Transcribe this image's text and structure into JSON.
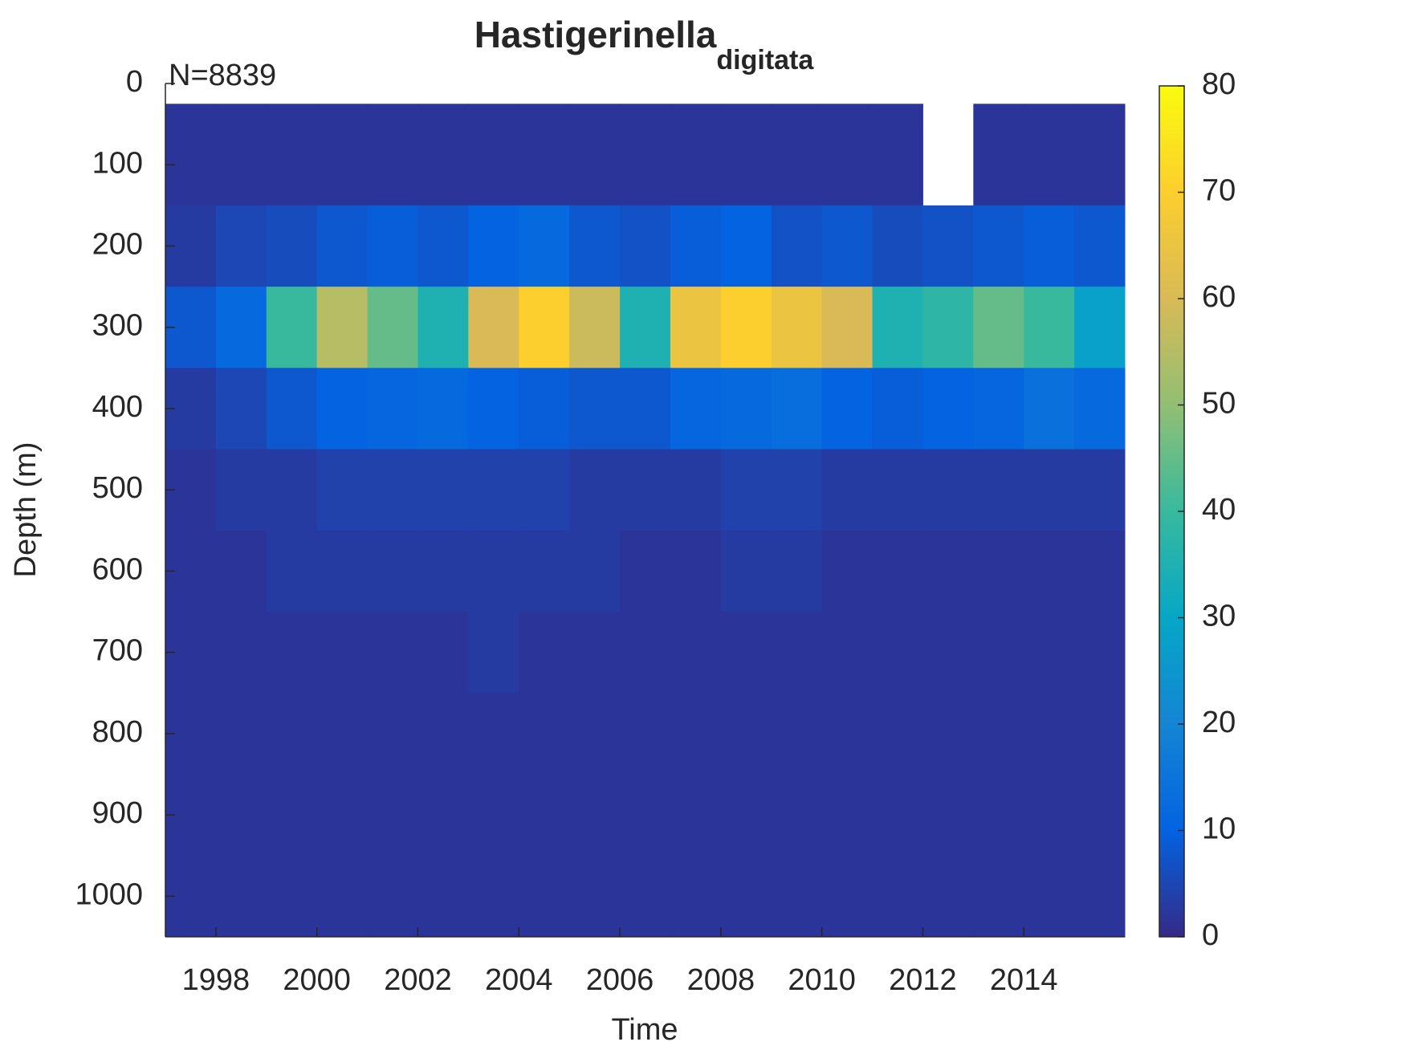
{
  "chart_data": {
    "type": "heatmap",
    "title": "Hastigerinella",
    "title_subscript": "digitata",
    "annotation": "N=8839",
    "x_label": "Time",
    "y_label": "Depth (m)",
    "x_bins": [
      1997,
      1998,
      1999,
      2000,
      2001,
      2002,
      2003,
      2004,
      2005,
      2006,
      2007,
      2008,
      2009,
      2010,
      2011,
      2012,
      2013,
      2014,
      2015,
      2016
    ],
    "y_bins": [
      25,
      150,
      250,
      350,
      450,
      550,
      650,
      750,
      850,
      950,
      1050
    ],
    "z": [
      [
        2,
        2,
        2,
        2,
        2,
        2,
        2,
        2,
        2,
        2,
        2,
        2,
        2,
        2,
        2,
        null,
        2,
        2,
        2
      ],
      [
        3,
        5,
        6,
        8,
        9,
        8,
        10,
        12,
        8,
        7,
        9,
        10,
        7,
        8,
        6,
        7,
        8,
        9,
        8
      ],
      [
        8,
        12,
        40,
        55,
        45,
        35,
        60,
        70,
        58,
        35,
        65,
        70,
        65,
        60,
        35,
        38,
        45,
        40,
        28
      ],
      [
        3,
        5,
        8,
        10,
        11,
        12,
        10,
        9,
        8,
        8,
        11,
        12,
        13,
        10,
        9,
        10,
        11,
        14,
        12
      ],
      [
        2,
        3,
        3,
        4,
        4,
        4,
        4,
        4,
        3,
        3,
        3,
        4,
        4,
        3,
        3,
        3,
        3,
        3,
        3
      ],
      [
        2,
        2,
        3,
        3,
        3,
        3,
        3,
        3,
        3,
        2,
        2,
        3,
        3,
        2,
        2,
        2,
        2,
        2,
        2
      ],
      [
        2,
        2,
        2,
        2,
        2,
        2,
        3,
        2,
        2,
        2,
        2,
        2,
        2,
        2,
        2,
        2,
        2,
        2,
        2
      ],
      [
        2,
        2,
        2,
        2,
        2,
        2,
        2,
        2,
        2,
        2,
        2,
        2,
        2,
        2,
        2,
        2,
        2,
        2,
        2
      ],
      [
        2,
        2,
        2,
        2,
        2,
        2,
        2,
        2,
        2,
        2,
        2,
        2,
        2,
        2,
        2,
        2,
        2,
        2,
        2
      ],
      [
        2,
        2,
        2,
        2,
        2,
        2,
        2,
        2,
        2,
        2,
        2,
        2,
        2,
        2,
        2,
        2,
        2,
        2,
        2
      ]
    ],
    "xlim": [
      1997,
      2016
    ],
    "xticks": [
      1998,
      2000,
      2002,
      2004,
      2006,
      2008,
      2010,
      2012,
      2014
    ],
    "ylim": [
      0,
      1050
    ],
    "y_reversed": true,
    "yticks": [
      0,
      100,
      200,
      300,
      400,
      500,
      600,
      700,
      800,
      900,
      1000
    ],
    "clim": [
      0,
      80
    ],
    "cticks": [
      0,
      10,
      20,
      30,
      40,
      50,
      60,
      70,
      80
    ],
    "colormap": [
      "#352a87",
      "#0363e1",
      "#1485d4",
      "#06a7c6",
      "#38b99e",
      "#92bf73",
      "#d9ba56",
      "#fcce2e",
      "#f9fb0e"
    ]
  }
}
